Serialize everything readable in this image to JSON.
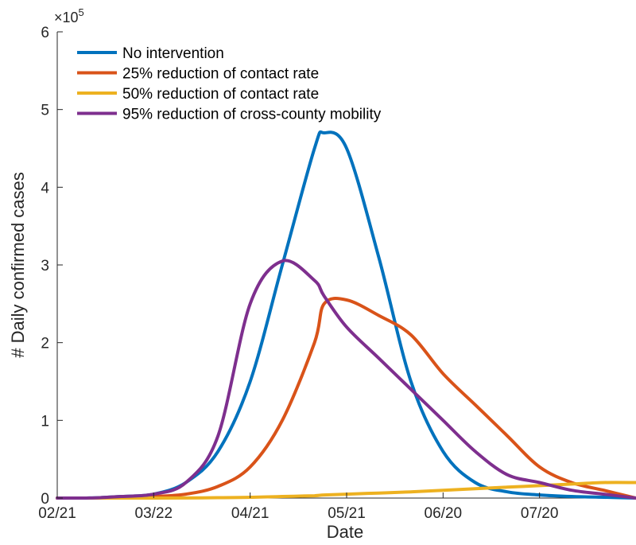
{
  "chart_data": {
    "type": "line",
    "xlabel": "Date",
    "ylabel": "# Daily confirmed cases",
    "y_exponent_label": "×10",
    "y_exponent_power": "5",
    "y_multiplier": 100000,
    "x_ticks": [
      "02/21",
      "03/22",
      "04/21",
      "05/21",
      "06/20",
      "07/20"
    ],
    "x_tick_positions": [
      "02/21",
      "03/22",
      "04/21",
      "05/21",
      "06/20",
      "07/20"
    ],
    "y_ticks": [
      "0",
      "1",
      "2",
      "3",
      "4",
      "5",
      "6"
    ],
    "xlim": [
      "02/21",
      "08/19"
    ],
    "ylim": [
      0,
      6
    ],
    "legend_position": "top-left",
    "grid": false,
    "x": [
      "02/21",
      "03/02",
      "03/12",
      "03/22",
      "04/01",
      "04/11",
      "04/21",
      "05/01",
      "05/11",
      "05/14",
      "05/21",
      "05/31",
      "06/10",
      "06/20",
      "06/30",
      "07/10",
      "07/20",
      "07/30",
      "08/09",
      "08/19"
    ],
    "series": [
      {
        "name": "No intervention",
        "color": "#0072BD",
        "values": [
          0,
          0.001,
          0.02,
          0.05,
          0.2,
          0.6,
          1.5,
          3.0,
          4.5,
          4.7,
          4.5,
          3.1,
          1.5,
          0.6,
          0.2,
          0.08,
          0.04,
          0.02,
          0.01,
          0
        ]
      },
      {
        "name": "25% reduction of contact rate",
        "color": "#D95319",
        "values": [
          0,
          0,
          0.005,
          0.02,
          0.05,
          0.15,
          0.4,
          1.0,
          2.0,
          2.5,
          2.55,
          2.35,
          2.1,
          1.6,
          1.2,
          0.8,
          0.4,
          0.2,
          0.1,
          0
        ]
      },
      {
        "name": "50% reduction of contact rate",
        "color": "#EDB120",
        "values": [
          0,
          0,
          0,
          0,
          0.001,
          0.005,
          0.01,
          0.02,
          0.03,
          0.04,
          0.05,
          0.065,
          0.08,
          0.1,
          0.12,
          0.14,
          0.16,
          0.18,
          0.2,
          0.2
        ]
      },
      {
        "name": "95% reduction of cross-county mobility",
        "color": "#7E2F8E",
        "values": [
          0,
          0.001,
          0.02,
          0.05,
          0.2,
          0.8,
          2.5,
          3.05,
          2.8,
          2.6,
          2.2,
          1.8,
          1.4,
          1.0,
          0.6,
          0.3,
          0.2,
          0.1,
          0.05,
          0
        ]
      }
    ]
  }
}
